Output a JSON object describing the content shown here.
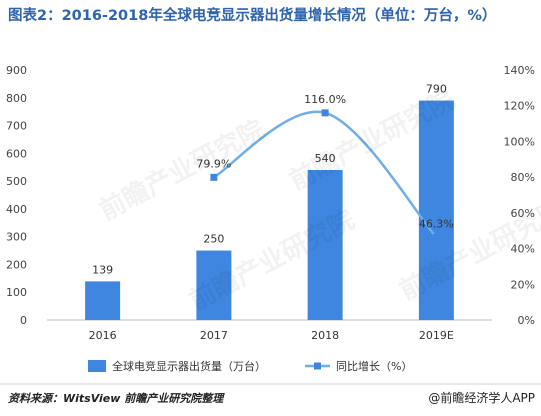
{
  "title": "图表2：2016-2018年全球电竞显示器出货量增长情况（单位：万台，%）",
  "source": "资料来源：WitsView 前瞻产业研究院整理",
  "brand": "@前瞻经济学人APP",
  "watermark": "前瞻产业研究院",
  "colors": {
    "bar": "#3f86e0",
    "line": "#70aee8",
    "marker": "#3f86e0",
    "title": "#2e63ad"
  },
  "chart_data": {
    "type": "bar",
    "categories": [
      "2016",
      "2017",
      "2018",
      "2019E"
    ],
    "series": [
      {
        "name": "全球电竞显示器出货量（万台）",
        "type": "bar",
        "axis": "left",
        "values": [
          139,
          250,
          540,
          790
        ],
        "labels": [
          "139",
          "250",
          "540",
          "790"
        ]
      },
      {
        "name": "同比增长（%）",
        "type": "line",
        "axis": "right",
        "values": [
          null,
          79.9,
          116.0,
          46.3
        ],
        "labels": [
          "",
          "79.9%",
          "116.0%",
          "46.3%"
        ]
      }
    ],
    "y_left": {
      "ylim": [
        0,
        900
      ],
      "ticks": [
        "0",
        "100",
        "200",
        "300",
        "400",
        "500",
        "600",
        "700",
        "800",
        "900"
      ]
    },
    "y_right": {
      "ylim": [
        0,
        140
      ],
      "ticks": [
        "0%",
        "20%",
        "40%",
        "60%",
        "80%",
        "100%",
        "120%",
        "140%"
      ]
    },
    "grid": false,
    "legend": "bottom"
  }
}
